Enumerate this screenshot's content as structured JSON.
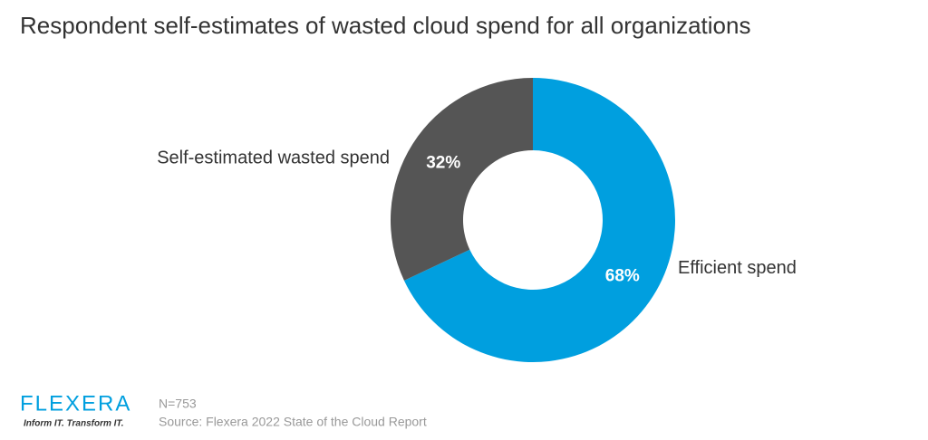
{
  "chart_data": {
    "type": "donut",
    "title": "Respondent self-estimates of wasted cloud spend for all organizations",
    "categories": [
      "Efficient spend",
      "Self-estimated wasted spend"
    ],
    "values": [
      68,
      32
    ],
    "value_labels": [
      "68%",
      "32%"
    ],
    "colors": [
      "#009fdf",
      "#555555"
    ],
    "footer": {
      "logo": "FLEXERA",
      "tagline": "Inform IT. Transform IT.",
      "note": "N=753",
      "source": "Source: Flexera 2022 State of the Cloud Report"
    }
  }
}
